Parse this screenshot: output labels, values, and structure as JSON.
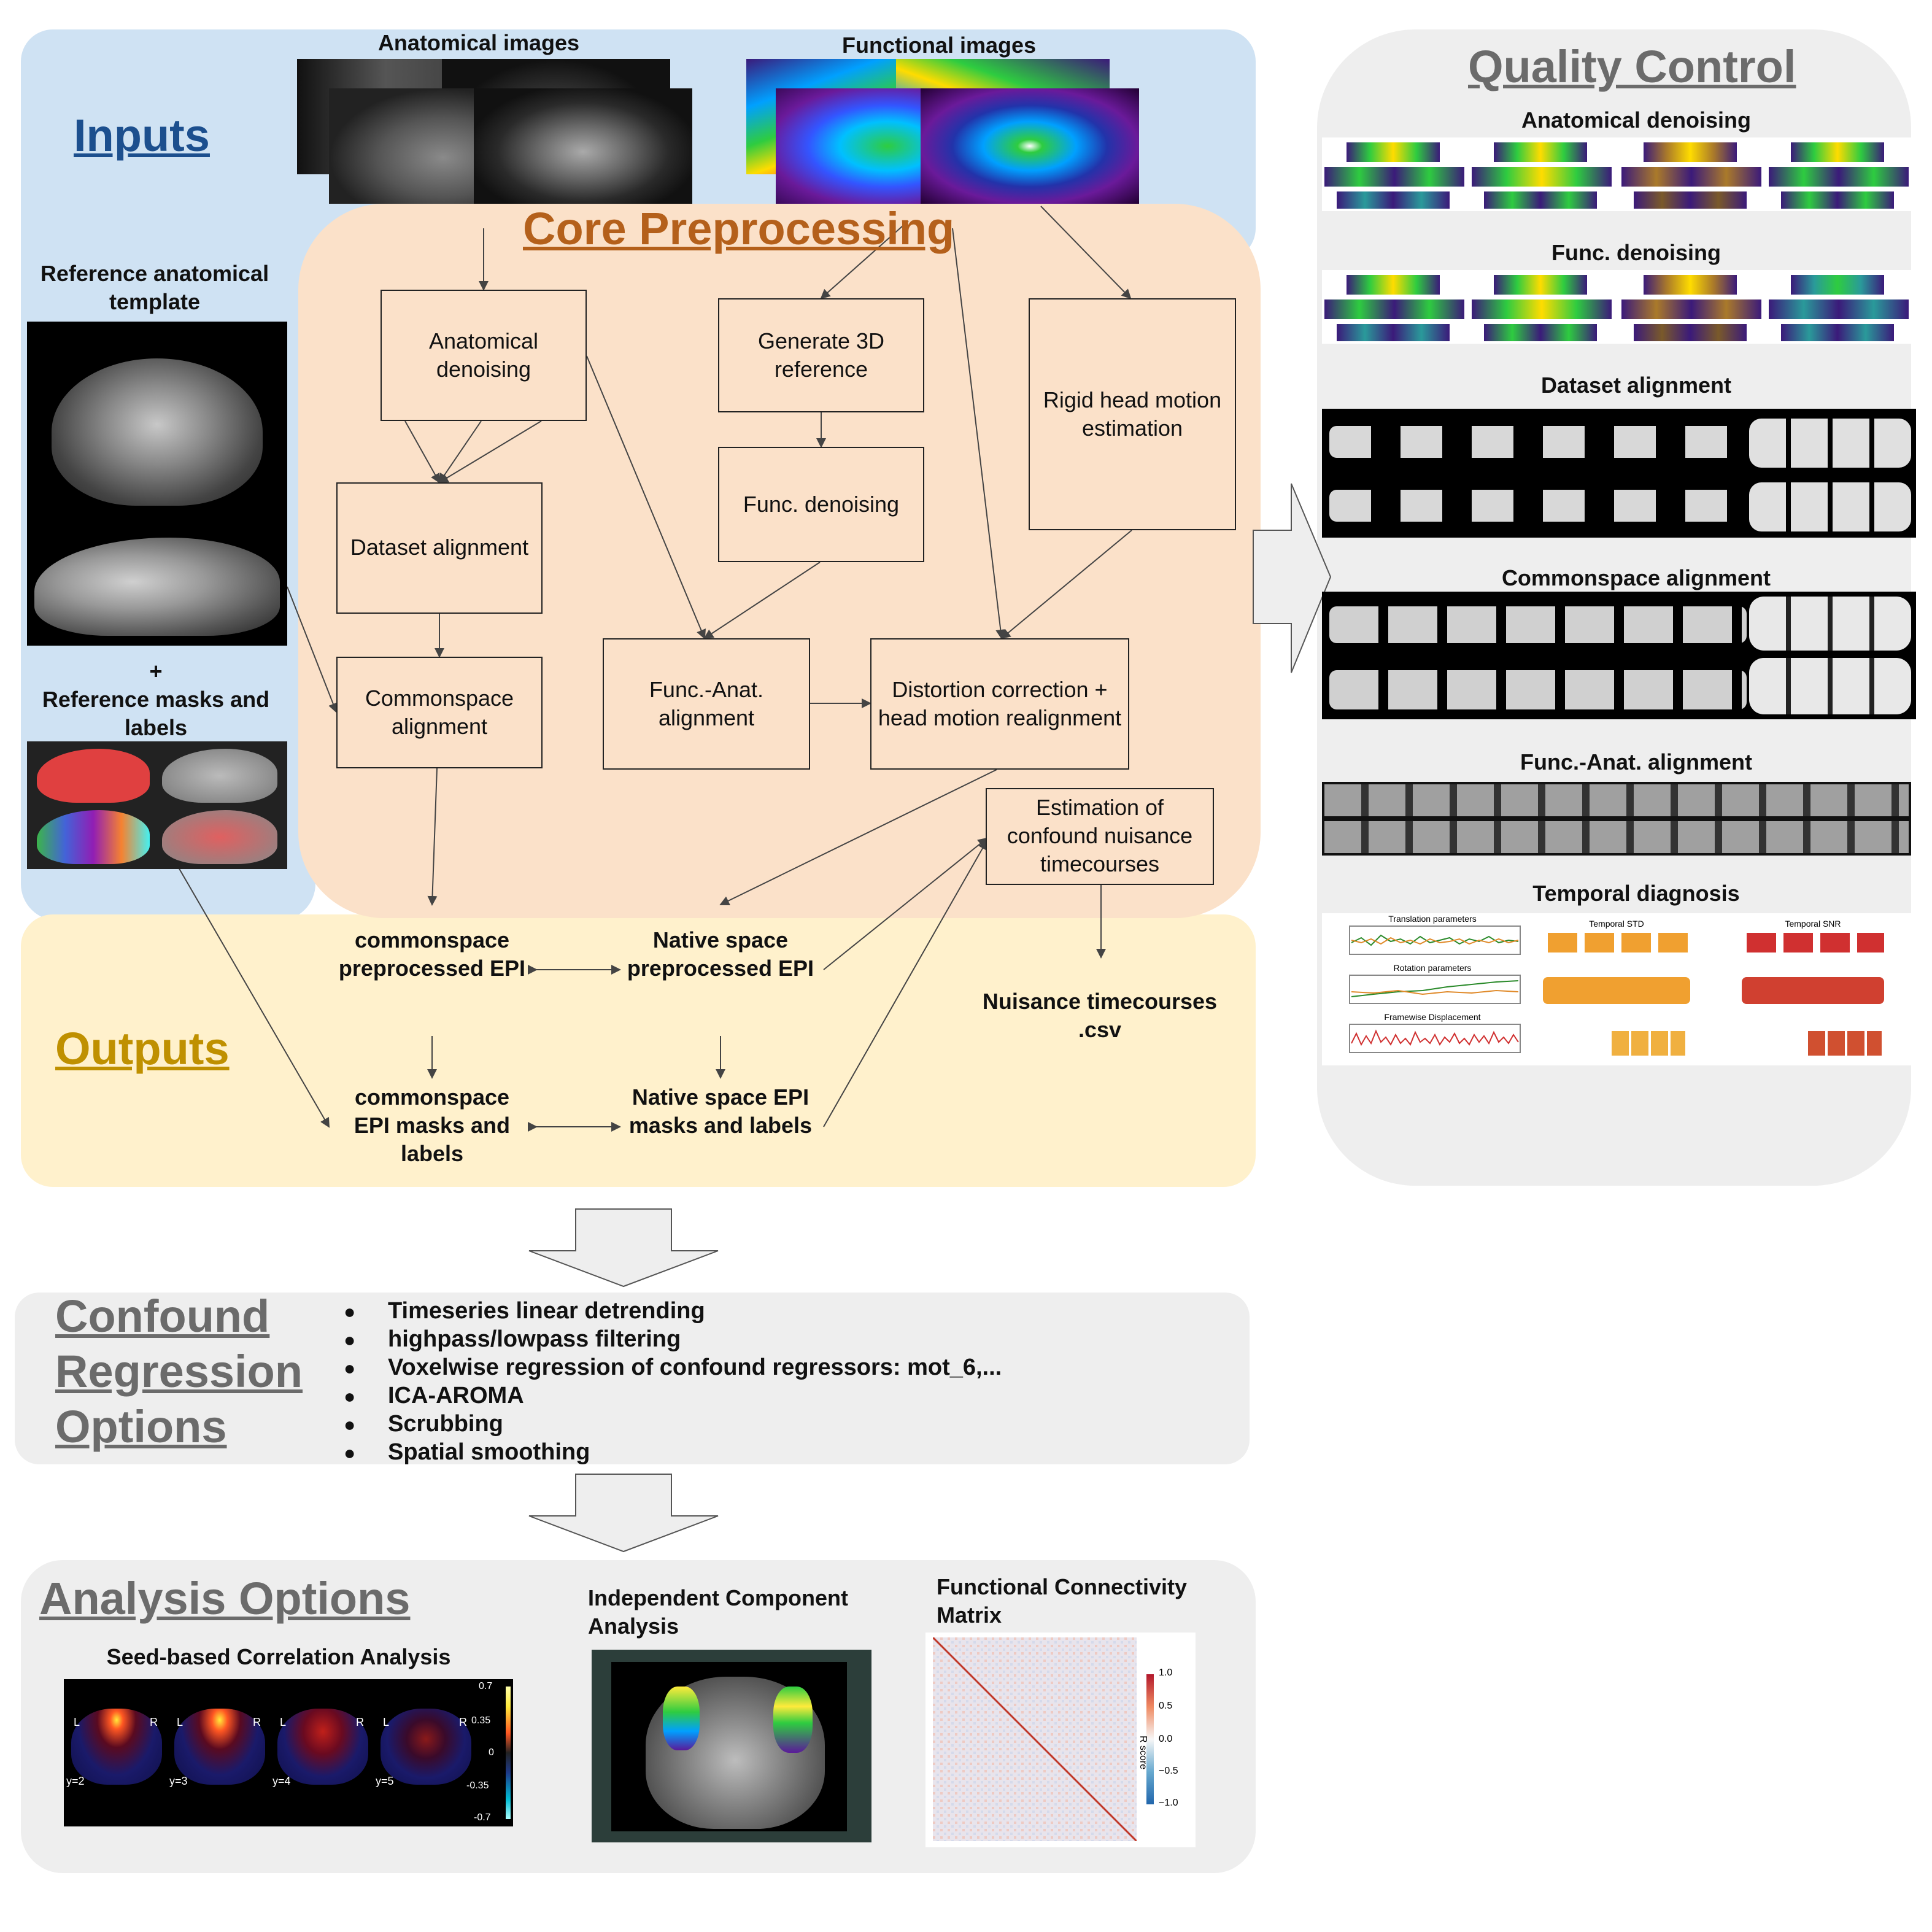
{
  "inputs": {
    "title": "Inputs",
    "anatomical_images_label": "Anatomical images",
    "functional_images_label": "Functional images",
    "template_label": "Reference anatomical template",
    "masks_label": "+\nReference masks and labels"
  },
  "core": {
    "title": "Core Preprocessing",
    "anat_denoising": "Anatomical denoising",
    "gen_3d_ref": "Generate 3D reference",
    "rigid_motion": "Rigid head motion estimation",
    "dataset_alignment": "Dataset alignment",
    "func_denoising": "Func. denoising",
    "commonspace_alignment": "Commonspace alignment",
    "func_anat_alignment": "Func.-Anat. alignment",
    "distortion_correction": "Distortion correction + head motion realignment",
    "confound_estimation": "Estimation of confound nuisance timecourses"
  },
  "outputs": {
    "title": "Outputs",
    "commonspace_epi": "commonspace preprocessed EPI",
    "native_epi": "Native space preprocessed EPI",
    "commonspace_masks": "commonspace EPI masks and labels",
    "native_masks": "Native space EPI masks and labels",
    "nuisance": "Nuisance timecourses .csv"
  },
  "qc": {
    "title": "Quality Control",
    "items": [
      "Anatomical denoising",
      "Func. denoising",
      "Dataset alignment",
      "Commonspace alignment",
      "Func.-Anat. alignment",
      "Temporal diagnosis"
    ],
    "temporal": {
      "translation": "Translation parameters",
      "rotation": "Rotation parameters",
      "fd": "Framewise Displacement",
      "tstd": "Temporal STD",
      "tsnr": "Temporal SNR"
    }
  },
  "confound": {
    "title_lines": [
      "Confound",
      "Regression",
      "Options"
    ],
    "items": [
      "Timeseries linear detrending",
      "highpass/lowpass filtering",
      "Voxelwise regression of confound regressors: mot_6,...",
      "ICA-AROMA",
      "Scrubbing",
      "Spatial smoothing"
    ]
  },
  "analysis": {
    "title": "Analysis Options",
    "seed_label": "Seed-based Correlation Analysis",
    "ica_label": "Independent Component Analysis",
    "fc_label": "Functional Connectivity Matrix",
    "seed_slices": [
      "y=2",
      "y=3",
      "y=4",
      "y=5"
    ],
    "seed_colorbar_ticks": [
      "0.7",
      "0.35",
      "0",
      "-0.35",
      "-0.7"
    ],
    "fc_colorbar_ticks": [
      "1.0",
      "0.5",
      "0.0",
      "−0.5",
      "−1.0"
    ],
    "fc_colorbar_label": "R score",
    "lr": [
      "L",
      "R"
    ]
  },
  "colors": {
    "inputs_bg": "#cfe2f3",
    "core_bg": "#fbe1c9",
    "outputs_bg": "#fff1cc",
    "gray_bg": "#eeeeee",
    "inputs_title": "#1c4f8e",
    "core_title": "#b4601b",
    "outputs_title": "#bf9000",
    "gray_title": "#6b6b6b"
  }
}
